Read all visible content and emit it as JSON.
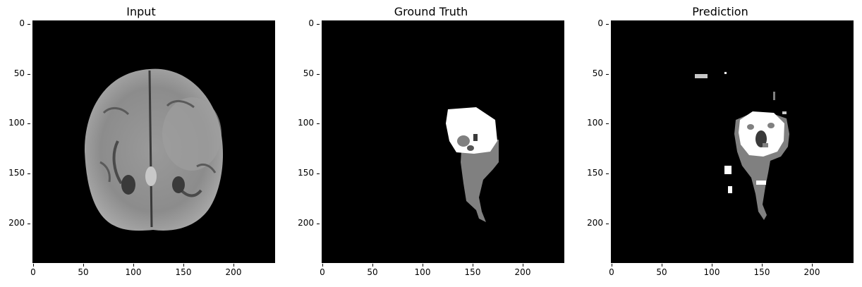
{
  "panels": [
    {
      "title": "Input"
    },
    {
      "title": "Ground Truth"
    },
    {
      "title": "Prediction"
    }
  ],
  "axis": {
    "xticks": [
      "0",
      "50",
      "100",
      "150",
      "200"
    ],
    "yticks": [
      "0",
      "50",
      "100",
      "150",
      "200"
    ]
  }
}
